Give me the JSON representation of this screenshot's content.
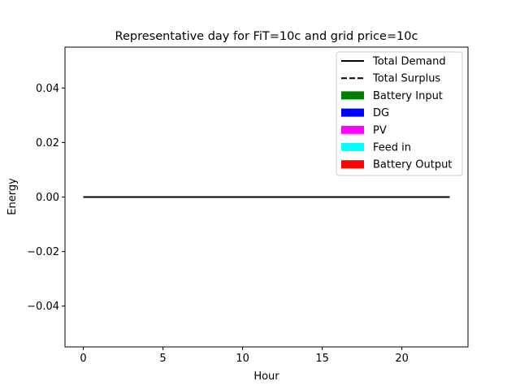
{
  "chart_data": {
    "type": "line",
    "title": "Representative day for FiT=10c and grid price=10c",
    "xlabel": "Hour",
    "ylabel": "Energy",
    "xlim": [
      -1.15,
      24.15
    ],
    "ylim": [
      -0.055,
      0.055
    ],
    "xticks": [
      0,
      5,
      10,
      15,
      20
    ],
    "xtick_labels": [
      "0",
      "5",
      "10",
      "15",
      "20"
    ],
    "yticks": [
      0.04,
      0.02,
      0.0,
      -0.02,
      -0.04
    ],
    "ytick_labels": [
      "0.04",
      "0.02",
      "0.00",
      "−0.02",
      "−0.04"
    ],
    "grid": false,
    "legend_position": "top-right",
    "x": [
      0,
      1,
      2,
      3,
      4,
      5,
      6,
      7,
      8,
      9,
      10,
      11,
      12,
      13,
      14,
      15,
      16,
      17,
      18,
      19,
      20,
      21,
      22,
      23
    ],
    "series": [
      {
        "name": "Total Demand",
        "kind": "line",
        "style": "solid",
        "color": "#000000",
        "values": [
          0,
          0,
          0,
          0,
          0,
          0,
          0,
          0,
          0,
          0,
          0,
          0,
          0,
          0,
          0,
          0,
          0,
          0,
          0,
          0,
          0,
          0,
          0,
          0
        ]
      },
      {
        "name": "Total Surplus",
        "kind": "line",
        "style": "dashed",
        "color": "#000000",
        "values": [
          0,
          0,
          0,
          0,
          0,
          0,
          0,
          0,
          0,
          0,
          0,
          0,
          0,
          0,
          0,
          0,
          0,
          0,
          0,
          0,
          0,
          0,
          0,
          0
        ]
      },
      {
        "name": "Battery Input",
        "kind": "bar",
        "color": "#008000",
        "values": [
          0,
          0,
          0,
          0,
          0,
          0,
          0,
          0,
          0,
          0,
          0,
          0,
          0,
          0,
          0,
          0,
          0,
          0,
          0,
          0,
          0,
          0,
          0,
          0
        ]
      },
      {
        "name": "DG",
        "kind": "bar",
        "color": "#0000ff",
        "values": [
          0,
          0,
          0,
          0,
          0,
          0,
          0,
          0,
          0,
          0,
          0,
          0,
          0,
          0,
          0,
          0,
          0,
          0,
          0,
          0,
          0,
          0,
          0,
          0
        ]
      },
      {
        "name": "PV",
        "kind": "bar",
        "color": "#ff00ff",
        "values": [
          0,
          0,
          0,
          0,
          0,
          0,
          0,
          0,
          0,
          0,
          0,
          0,
          0,
          0,
          0,
          0,
          0,
          0,
          0,
          0,
          0,
          0,
          0,
          0
        ]
      },
      {
        "name": "Feed in",
        "kind": "bar",
        "color": "#00ffff",
        "values": [
          0,
          0,
          0,
          0,
          0,
          0,
          0,
          0,
          0,
          0,
          0,
          0,
          0,
          0,
          0,
          0,
          0,
          0,
          0,
          0,
          0,
          0,
          0,
          0
        ]
      },
      {
        "name": "Battery Output",
        "kind": "bar",
        "color": "#ff0000",
        "values": [
          0,
          0,
          0,
          0,
          0,
          0,
          0,
          0,
          0,
          0,
          0,
          0,
          0,
          0,
          0,
          0,
          0,
          0,
          0,
          0,
          0,
          0,
          0,
          0
        ]
      }
    ]
  }
}
